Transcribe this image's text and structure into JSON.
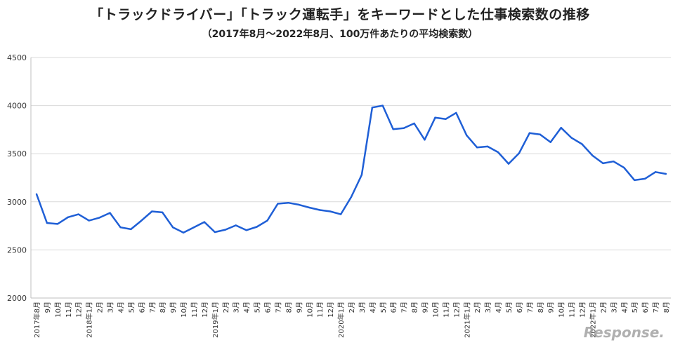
{
  "title": "「トラックドライバー」「トラック運転手」をキーワードとした仕事検索数の推移",
  "subtitle": "（2017年8月～2022年8月、100万件あたりの平均検索数）",
  "watermark": "Response.",
  "colors": {
    "line": "#1f5fd6",
    "grid": "#d9d9d9",
    "axis": "#bfbfbf"
  },
  "chart_data": {
    "type": "line",
    "title": "「トラックドライバー」「トラック運転手」をキーワードとした仕事検索数の推移",
    "subtitle": "（2017年8月～2022年8月、100万件あたりの平均検索数）",
    "xlabel": "",
    "ylabel": "",
    "ylim": [
      2000,
      4500
    ],
    "yticks": [
      2000,
      2500,
      3000,
      3500,
      4000,
      4500
    ],
    "grid": true,
    "categories": [
      "2017年8月",
      "9月",
      "10月",
      "11月",
      "12月",
      "2018年1月",
      "2月",
      "3月",
      "4月",
      "5月",
      "6月",
      "7月",
      "8月",
      "9月",
      "10月",
      "11月",
      "12月",
      "2019年1月",
      "2月",
      "3月",
      "4月",
      "5月",
      "6月",
      "7月",
      "8月",
      "9月",
      "10月",
      "11月",
      "12月",
      "2020年1月",
      "2月",
      "3月",
      "4月",
      "5月",
      "6月",
      "7月",
      "8月",
      "9月",
      "10月",
      "11月",
      "12月",
      "2021年1月",
      "2月",
      "3月",
      "4月",
      "5月",
      "6月",
      "7月",
      "8月",
      "9月",
      "10月",
      "11月",
      "12月",
      "2022年1月",
      "2月",
      "3月",
      "4月",
      "5月",
      "6月",
      "7月",
      "8月"
    ],
    "series": [
      {
        "values": [
          3080,
          2780,
          2770,
          2840,
          2870,
          2805,
          2835,
          2885,
          2735,
          2715,
          2805,
          2900,
          2890,
          2735,
          2680,
          2735,
          2790,
          2685,
          2710,
          2755,
          2705,
          2740,
          2805,
          2980,
          2990,
          2970,
          2940,
          2915,
          2900,
          2870,
          3050,
          3280,
          3980,
          4000,
          3755,
          3765,
          3815,
          3645,
          3875,
          3860,
          3925,
          3690,
          3565,
          3575,
          3515,
          3395,
          3505,
          3715,
          3700,
          3620,
          3770,
          3665,
          3600,
          3480,
          3400,
          3420,
          3355,
          3225,
          3240,
          3310,
          3290
        ]
      }
    ]
  }
}
